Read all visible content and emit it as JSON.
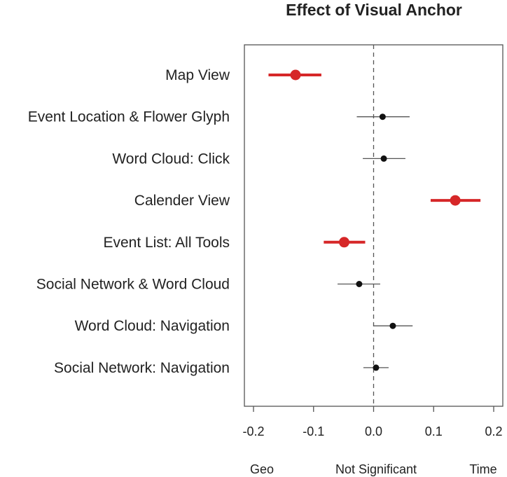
{
  "chart_data": {
    "type": "scatter",
    "title": "Effect of Visual Anchor",
    "xlabel": "",
    "ylabel": "",
    "xlim": [
      -0.2,
      0.2
    ],
    "x_ticks": [
      -0.2,
      -0.1,
      0.0,
      0.1,
      0.2
    ],
    "x_tick_labels": [
      "-0.2",
      "-0.1",
      "0.0",
      "0.1",
      "0.2"
    ],
    "reference_line": 0.0,
    "bottom_labels": [
      "Geo",
      "Not Significant",
      "Time"
    ],
    "colors": {
      "significant": "#d62728",
      "not_significant": "#111111"
    },
    "categories": [
      "Map View",
      "Event Location & Flower Glyph",
      "Word Cloud: Click",
      "Calender View",
      "Event List: All Tools",
      "Social Network & Word Cloud",
      "Word Cloud: Navigation",
      "Social Network: Navigation"
    ],
    "points": [
      {
        "estimate": -0.13,
        "lower": -0.175,
        "upper": -0.087,
        "significant": true
      },
      {
        "estimate": 0.015,
        "lower": -0.028,
        "upper": 0.06,
        "significant": false
      },
      {
        "estimate": 0.017,
        "lower": -0.018,
        "upper": 0.053,
        "significant": false
      },
      {
        "estimate": 0.136,
        "lower": 0.095,
        "upper": 0.178,
        "significant": true
      },
      {
        "estimate": -0.049,
        "lower": -0.083,
        "upper": -0.014,
        "significant": true
      },
      {
        "estimate": -0.024,
        "lower": -0.06,
        "upper": 0.011,
        "significant": false
      },
      {
        "estimate": 0.032,
        "lower": 0.0,
        "upper": 0.065,
        "significant": false
      },
      {
        "estimate": 0.004,
        "lower": -0.017,
        "upper": 0.025,
        "significant": false
      }
    ]
  }
}
